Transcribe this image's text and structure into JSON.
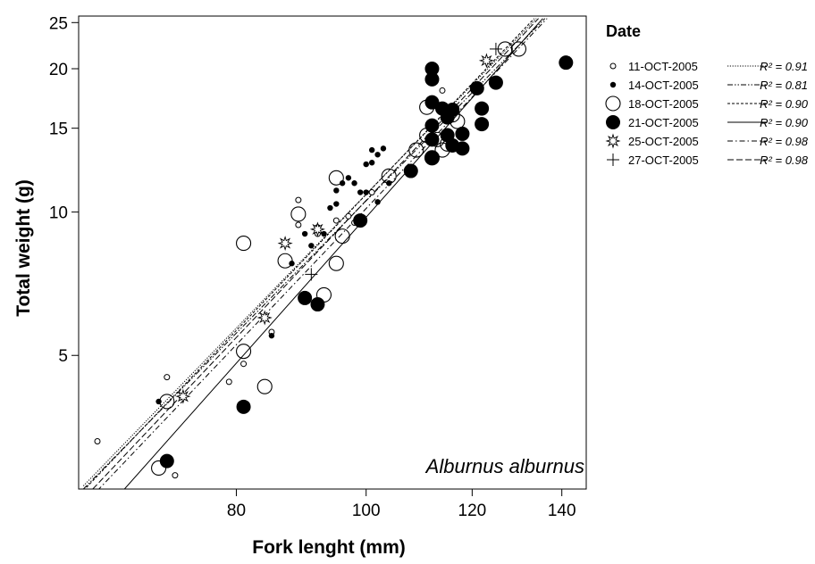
{
  "chart_data": {
    "type": "scatter",
    "title": "",
    "xlabel": "Fork lenght (mm)",
    "ylabel": "Total weight (g)",
    "xscale": "log",
    "yscale": "log",
    "xlim": [
      61,
      146
    ],
    "ylim": [
      2.62,
      25.8
    ],
    "xticks": [
      80,
      100,
      120,
      140
    ],
    "yticks": [
      5,
      10,
      15,
      20,
      25
    ],
    "annotation": "Alburnus alburnus",
    "grid": false,
    "legend_position": "right",
    "legend_title": "Date",
    "series": [
      {
        "name": "11-OCT-2005",
        "marker": "small-open-circle",
        "line_style": "dotted",
        "r2_label": "R² = 0.91",
        "fit": {
          "x": [
            61.5,
            134
          ],
          "y": [
            2.66,
            25.5
          ]
        },
        "points": [
          [
            63,
            3.3
          ],
          [
            71,
            4.5
          ],
          [
            72,
            2.8
          ],
          [
            79,
            4.4
          ],
          [
            81,
            4.8
          ],
          [
            85,
            5.6
          ],
          [
            89,
            10.6
          ],
          [
            89,
            9.4
          ],
          [
            92,
            9.0
          ],
          [
            95,
            9.6
          ],
          [
            97,
            9.8
          ],
          [
            98,
            9.5
          ],
          [
            101,
            11.0
          ],
          [
            114,
            18.0
          ]
        ]
      },
      {
        "name": "14-OCT-2005",
        "marker": "small-filled-circle",
        "line_style": "dash-dot-dot",
        "r2_label": "R² = 0.81",
        "fit": {
          "x": [
            61.5,
            136
          ],
          "y": [
            2.62,
            25.5
          ]
        },
        "points": [
          [
            70,
            4.0
          ],
          [
            85,
            5.5
          ],
          [
            88,
            7.8
          ],
          [
            90,
            9.0
          ],
          [
            91,
            8.5
          ],
          [
            92,
            9.3
          ],
          [
            93,
            9.0
          ],
          [
            94,
            10.2
          ],
          [
            95,
            11.1
          ],
          [
            95,
            10.4
          ],
          [
            96,
            11.5
          ],
          [
            97,
            11.8
          ],
          [
            98,
            11.5
          ],
          [
            99,
            11.0
          ],
          [
            100,
            11.0
          ],
          [
            100,
            12.6
          ],
          [
            101,
            12.7
          ],
          [
            101,
            13.5
          ],
          [
            102,
            13.2
          ],
          [
            102,
            10.5
          ],
          [
            103,
            13.6
          ],
          [
            104,
            11.5
          ]
        ]
      },
      {
        "name": "18-OCT-2005",
        "marker": "large-open-circle",
        "line_style": "short-dash",
        "r2_label": "R² = 0.90",
        "fit": {
          "x": [
            61.5,
            133.5
          ],
          "y": [
            2.6,
            25.5
          ]
        },
        "points": [
          [
            70,
            2.9
          ],
          [
            71,
            4.0
          ],
          [
            81,
            8.6
          ],
          [
            81,
            5.1
          ],
          [
            84,
            4.3
          ],
          [
            87,
            7.9
          ],
          [
            89,
            9.9
          ],
          [
            93,
            6.7
          ],
          [
            95,
            11.8
          ],
          [
            95,
            7.8
          ],
          [
            96,
            8.9
          ],
          [
            104,
            11.9
          ],
          [
            109,
            13.5
          ],
          [
            111,
            14.5
          ],
          [
            111,
            16.6
          ],
          [
            112,
            13.0
          ],
          [
            113,
            14.2
          ],
          [
            114,
            13.5
          ],
          [
            115,
            13.9
          ],
          [
            116,
            16.0
          ],
          [
            117,
            15.5
          ],
          [
            127,
            22.0
          ],
          [
            130,
            22.0
          ]
        ]
      },
      {
        "name": "21-OCT-2005",
        "marker": "large-filled-circle",
        "line_style": "solid",
        "r2_label": "R² = 0.90",
        "fit": {
          "x": [
            66,
            135.5
          ],
          "y": [
            2.62,
            25.5
          ]
        },
        "points": [
          [
            71,
            3.0
          ],
          [
            81,
            3.9
          ],
          [
            90,
            6.6
          ],
          [
            92,
            6.4
          ],
          [
            99,
            9.6
          ],
          [
            108,
            12.2
          ],
          [
            112,
            20.0
          ],
          [
            112,
            19.0
          ],
          [
            112,
            17.0
          ],
          [
            112,
            15.2
          ],
          [
            112,
            14.2
          ],
          [
            112,
            13.0
          ],
          [
            114,
            16.5
          ],
          [
            115,
            14.5
          ],
          [
            115,
            15.8
          ],
          [
            116,
            16.4
          ],
          [
            116,
            13.8
          ],
          [
            118,
            14.6
          ],
          [
            118,
            13.6
          ],
          [
            121,
            18.2
          ],
          [
            122,
            15.3
          ],
          [
            122,
            16.5
          ],
          [
            125,
            18.7
          ],
          [
            141,
            20.6
          ]
        ]
      },
      {
        "name": "25-OCT-2005",
        "marker": "open-star",
        "line_style": "dash-dot",
        "r2_label": "R² = 0.98",
        "fit": {
          "x": [
            63,
            136.5
          ],
          "y": [
            2.6,
            25.5
          ]
        },
        "points": [
          [
            73,
            4.1
          ],
          [
            84,
            6.0
          ],
          [
            87,
            8.6
          ],
          [
            92,
            9.2
          ],
          [
            123,
            20.8
          ]
        ]
      },
      {
        "name": "27-OCT-2005",
        "marker": "plus",
        "line_style": "long-dash",
        "r2_label": "R² = 0.98",
        "fit": {
          "x": [
            62.5,
            134.5
          ],
          "y": [
            2.62,
            25.5
          ]
        },
        "points": [
          [
            91,
            7.4
          ],
          [
            125,
            22.0
          ]
        ]
      }
    ]
  }
}
